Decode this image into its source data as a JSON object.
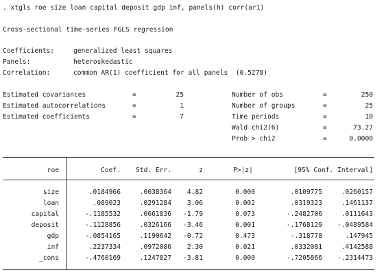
{
  "command": ". xtgls roe size loan capital deposit gdp inf, panels(h) corr(ar1)",
  "title": "Cross-sectional time-series FGLS regression",
  "model_info": [
    {
      "label": "Coefficients:",
      "value": "generalized least squares"
    },
    {
      "label": "Panels:",
      "value": "heteroskedastic"
    },
    {
      "label": "Correlation:",
      "value": "common AR(1) coefficient for all panels  (0.5278)"
    }
  ],
  "left_stats": [
    {
      "label": "Estimated covariances",
      "eq": "=",
      "value": "25"
    },
    {
      "label": "Estimated autocorrelations",
      "eq": "=",
      "value": "1"
    },
    {
      "label": "Estimated coefficients",
      "eq": "=",
      "value": "7"
    }
  ],
  "right_stats": [
    {
      "label": "Number of obs",
      "eq": "=",
      "value": "250"
    },
    {
      "label": "Number of groups",
      "eq": "=",
      "value": "25"
    },
    {
      "label": "Time periods",
      "eq": "=",
      "value": "10"
    },
    {
      "label": "Wald chi2(6)",
      "eq": "=",
      "value": "73.27"
    },
    {
      "label": "Prob > chi2",
      "eq": "=",
      "value": "0.0000"
    }
  ],
  "table": {
    "headers": {
      "var": "roe",
      "coef": "Coef.",
      "se": "Std. Err.",
      "z": "z",
      "p": "P>|z|",
      "ci": "[95% Conf. Interval]"
    },
    "rows": [
      {
        "var": "size",
        "coef": ".0184966",
        "se": ".0038364",
        "z": "4.82",
        "p": "0.000",
        "lo": ".0109775",
        "hi": ".0260157"
      },
      {
        "var": "loan",
        "coef": ".089023",
        "se": ".0291284",
        "z": "3.06",
        "p": "0.002",
        "lo": ".0319323",
        "hi": ".1461137"
      },
      {
        "var": "capital",
        "coef": "-.1185532",
        "se": ".0661836",
        "z": "-1.79",
        "p": "0.073",
        "lo": "-.2482706",
        "hi": ".0111643"
      },
      {
        "var": "deposit",
        "coef": "-.1128856",
        "se": ".0326166",
        "z": "-3.46",
        "p": "0.001",
        "lo": "-.1768129",
        "hi": "-.0489584"
      },
      {
        "var": "gdp",
        "coef": "-.0854165",
        "se": ".1190642",
        "z": "-0.72",
        "p": "0.473",
        "lo": "-.318778",
        "hi": ".147945"
      },
      {
        "var": "inf",
        "coef": ".2237334",
        "se": ".0972086",
        "z": "2.30",
        "p": "0.021",
        "lo": ".0332081",
        "hi": ".4142588"
      },
      {
        "var": "_cons",
        "coef": "-.4760169",
        "se": ".1247827",
        "z": "-3.81",
        "p": "0.000",
        "lo": "-.7205866",
        "hi": "-.2314473"
      }
    ]
  }
}
